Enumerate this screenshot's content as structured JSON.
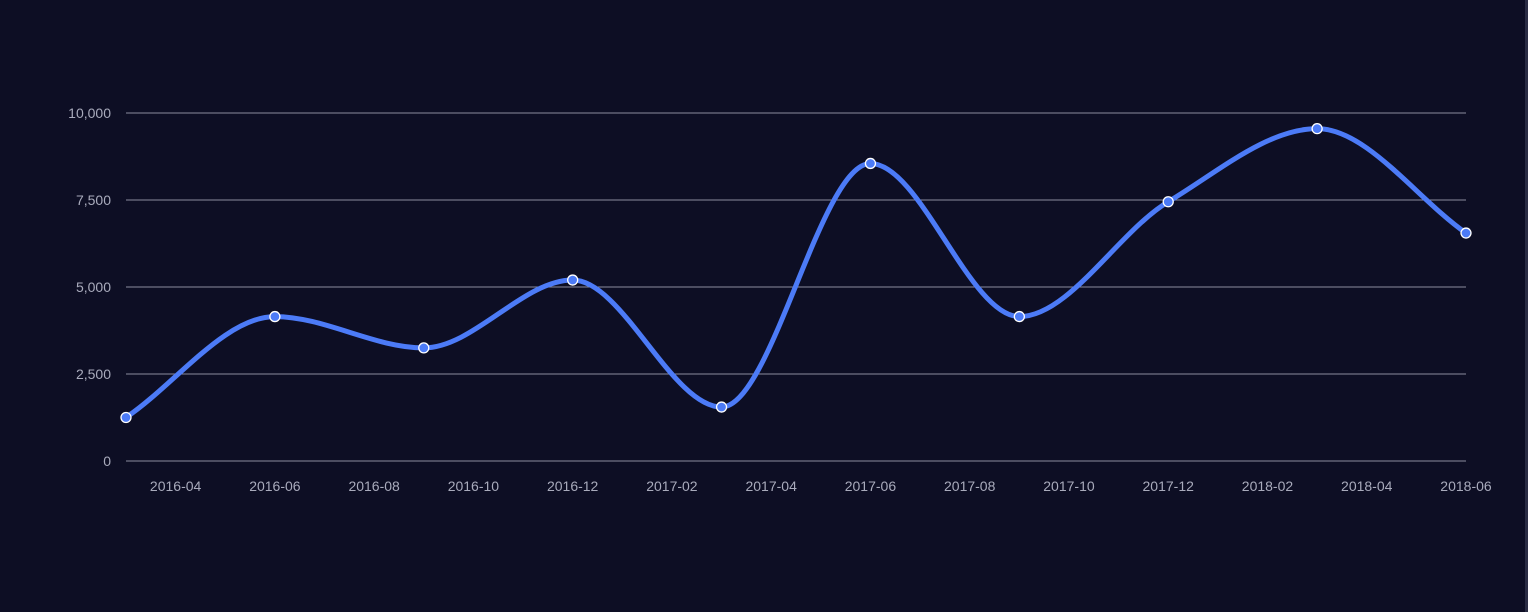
{
  "colors": {
    "background": "#0d0e24",
    "line": "#4c7bf7",
    "point_fill": "#4c7bf7",
    "point_stroke": "#ffffff",
    "grid": "#8a8c9e",
    "tick_text": "#a9abbc"
  },
  "chart_data": {
    "type": "line",
    "title": "",
    "xlabel": "",
    "ylabel": "",
    "smooth": true,
    "grid": "horizontal",
    "legend": "none",
    "x_axis": {
      "type": "date",
      "range": [
        "2016-03",
        "2018-06"
      ],
      "ticks": [
        "2016-04",
        "2016-06",
        "2016-08",
        "2016-10",
        "2016-12",
        "2017-02",
        "2017-04",
        "2017-06",
        "2017-08",
        "2017-10",
        "2017-12",
        "2018-02",
        "2018-04",
        "2018-06"
      ]
    },
    "y_axis": {
      "range": [
        0,
        10000
      ],
      "ticks": [
        {
          "value": 0,
          "label": "0"
        },
        {
          "value": 2500,
          "label": "2,500"
        },
        {
          "value": 5000,
          "label": "5,000"
        },
        {
          "value": 7500,
          "label": "7,500"
        },
        {
          "value": 10000,
          "label": "10,000"
        }
      ]
    },
    "series": [
      {
        "points": [
          {
            "x": "2016-03",
            "y": 1250
          },
          {
            "x": "2016-06",
            "y": 4150
          },
          {
            "x": "2016-09",
            "y": 3250
          },
          {
            "x": "2016-12",
            "y": 5200
          },
          {
            "x": "2017-03",
            "y": 1550
          },
          {
            "x": "2017-06",
            "y": 8550
          },
          {
            "x": "2017-09",
            "y": 4150
          },
          {
            "x": "2017-12",
            "y": 7450
          },
          {
            "x": "2018-03",
            "y": 9550
          },
          {
            "x": "2018-06",
            "y": 6550
          }
        ]
      }
    ]
  }
}
